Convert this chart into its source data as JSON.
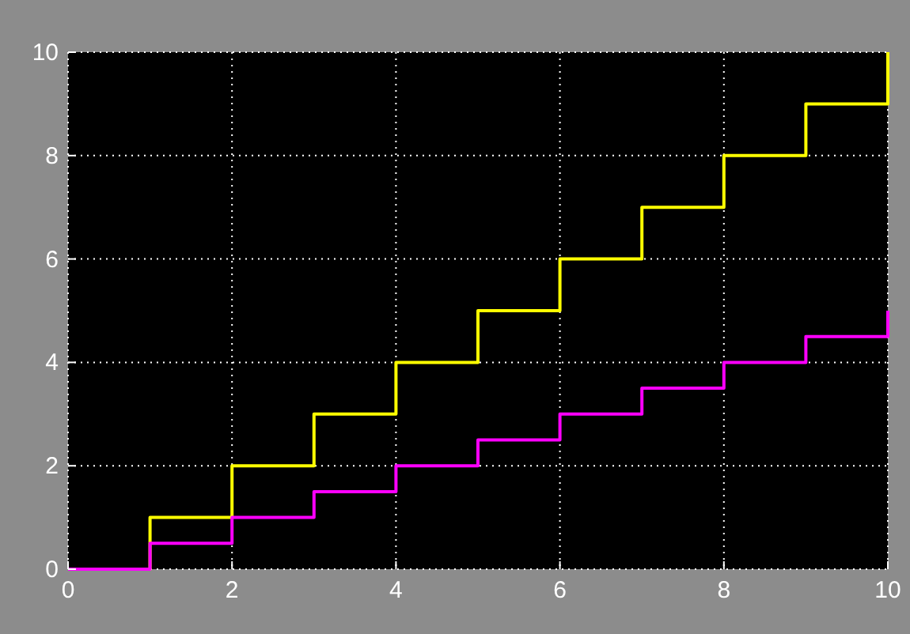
{
  "chart_data": {
    "type": "step",
    "x": [
      0,
      1,
      2,
      3,
      4,
      5,
      6,
      7,
      8,
      9,
      10
    ],
    "series": [
      {
        "color": "#ffff00",
        "values": [
          0,
          1,
          2,
          3,
          4,
          5,
          6,
          7,
          8,
          9,
          10
        ]
      },
      {
        "color": "#ff00ff",
        "values": [
          0,
          0.5,
          1,
          1.5,
          2,
          2.5,
          3,
          3.5,
          4,
          4.5,
          5
        ]
      }
    ],
    "xlim": [
      0,
      10
    ],
    "xticks": [
      0,
      2,
      4,
      6,
      8,
      10
    ],
    "ylim": [
      0,
      10
    ],
    "yticks": [
      0,
      2,
      4,
      6,
      8,
      10
    ],
    "grid": true,
    "line_style": "solid",
    "marker": "none"
  }
}
